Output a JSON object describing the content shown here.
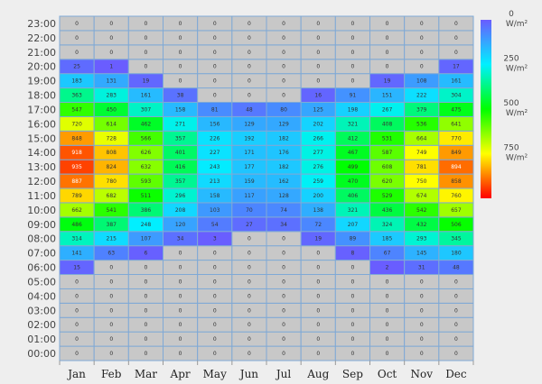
{
  "chart_data": {
    "type": "heatmap",
    "title": "",
    "xlabel": "",
    "ylabel": "",
    "x_categories": [
      "Jan",
      "Feb",
      "Mar",
      "Apr",
      "May",
      "Jun",
      "Jul",
      "Aug",
      "Sep",
      "Oct",
      "Nov",
      "Dec"
    ],
    "y_categories": [
      "00:00",
      "01:00",
      "02:00",
      "03:00",
      "04:00",
      "05:00",
      "06:00",
      "07:00",
      "08:00",
      "09:00",
      "10:00",
      "11:00",
      "12:00",
      "13:00",
      "14:00",
      "15:00",
      "16:00",
      "17:00",
      "18:00",
      "19:00",
      "20:00",
      "21:00",
      "22:00",
      "23:00"
    ],
    "values_by_hour": [
      [
        0,
        0,
        0,
        0,
        0,
        0,
        0,
        0,
        0,
        0,
        0,
        0
      ],
      [
        0,
        0,
        0,
        0,
        0,
        0,
        0,
        0,
        0,
        0,
        0,
        0
      ],
      [
        0,
        0,
        0,
        0,
        0,
        0,
        0,
        0,
        0,
        0,
        0,
        0
      ],
      [
        0,
        0,
        0,
        0,
        0,
        0,
        0,
        0,
        0,
        0,
        0,
        0
      ],
      [
        0,
        0,
        0,
        0,
        0,
        0,
        0,
        0,
        0,
        0,
        0,
        0
      ],
      [
        0,
        0,
        0,
        0,
        0,
        0,
        0,
        0,
        0,
        0,
        0,
        0
      ],
      [
        15,
        0,
        0,
        0,
        0,
        0,
        0,
        0,
        0,
        2,
        31,
        48
      ],
      [
        141,
        63,
        6,
        0,
        0,
        0,
        0,
        0,
        8,
        67,
        145,
        180
      ],
      [
        314,
        215,
        107,
        34,
        3,
        0,
        0,
        19,
        89,
        185,
        293,
        345
      ],
      [
        486,
        387,
        248,
        120,
        54,
        27,
        34,
        72,
        207,
        324,
        432,
        506
      ],
      [
        662,
        541,
        386,
        208,
        103,
        70,
        74,
        138,
        321,
        436,
        542,
        657
      ],
      [
        789,
        682,
        511,
        296,
        158,
        117,
        128,
        200,
        406,
        529,
        674,
        760
      ],
      [
        887,
        780,
        593,
        357,
        213,
        159,
        162,
        259,
        470,
        620,
        750,
        858
      ],
      [
        935,
        824,
        632,
        416,
        243,
        177,
        182,
        276,
        499,
        608,
        781,
        894
      ],
      [
        918,
        808,
        626,
        401,
        227,
        171,
        176,
        277,
        467,
        587,
        749,
        849
      ],
      [
        848,
        728,
        566,
        357,
        226,
        192,
        182,
        266,
        412,
        531,
        664,
        770
      ],
      [
        720,
        614,
        462,
        271,
        156,
        129,
        129,
        202,
        321,
        408,
        536,
        641
      ],
      [
        547,
        450,
        307,
        158,
        81,
        48,
        80,
        125,
        198,
        267,
        379,
        475
      ],
      [
        363,
        283,
        161,
        38,
        0,
        0,
        0,
        16,
        91,
        151,
        222,
        304
      ],
      [
        183,
        131,
        19,
        0,
        0,
        0,
        0,
        0,
        0,
        19,
        108,
        161
      ],
      [
        25,
        1,
        0,
        0,
        0,
        0,
        0,
        0,
        0,
        0,
        0,
        17
      ],
      [
        0,
        0,
        0,
        0,
        0,
        0,
        0,
        0,
        0,
        0,
        0,
        0
      ],
      [
        0,
        0,
        0,
        0,
        0,
        0,
        0,
        0,
        0,
        0,
        0,
        0
      ],
      [
        0,
        0,
        0,
        0,
        0,
        0,
        0,
        0,
        0,
        0,
        0,
        0
      ]
    ],
    "color_scale": {
      "min": 0,
      "max": 1000,
      "zero_color": "#c8c8c8",
      "stops": [
        {
          "value": 0,
          "color": "#6a5cff"
        },
        {
          "value": 250,
          "color": "#00f0ff"
        },
        {
          "value": 500,
          "color": "#00ff00"
        },
        {
          "value": 750,
          "color": "#ffff00"
        },
        {
          "value": 1000,
          "color": "#ff0000"
        }
      ],
      "tick_values": [
        "0",
        "250",
        "500",
        "750"
      ],
      "unit": "W/m²"
    },
    "grid_line_color": "#7fa9d6"
  }
}
